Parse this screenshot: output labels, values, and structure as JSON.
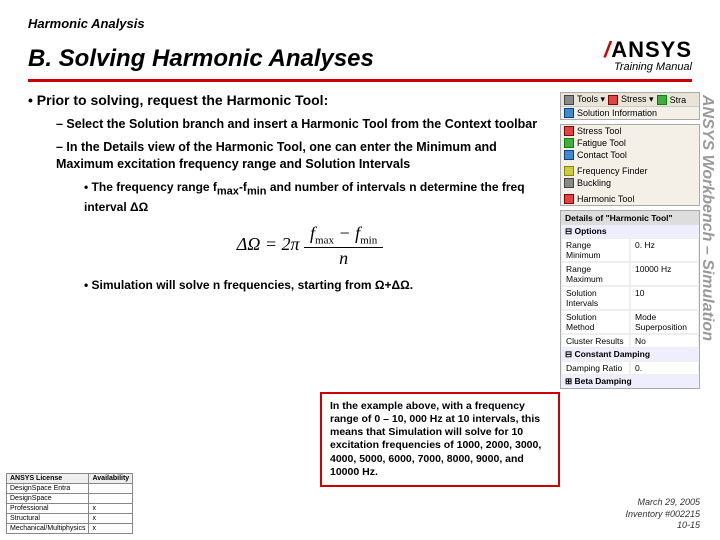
{
  "header": {
    "breadcrumb": "Harmonic Analysis",
    "title": "B.  Solving Harmonic Analyses",
    "logo_text": "ANSYS",
    "manual_label": "Training Manual"
  },
  "sidebar_text": "ANSYS Workbench – Simulation",
  "bullets": {
    "l1": "•  Prior to solving, request the Harmonic Tool:",
    "l2a": "–  Select the Solution branch and insert a Harmonic Tool from the Context toolbar",
    "l2b": "–  In the Details view of the Harmonic Tool, one can enter the Minimum and Maximum excitation frequency range and Solution Intervals",
    "l3a_pre": "•  The frequency range f",
    "l3a_mid": "-f",
    "l3a_post": " and number of intervals n determine the freq interval ΔΩ",
    "l3b": "•  Simulation will solve n frequencies, starting from Ω+ΔΩ."
  },
  "formula": {
    "lhs": "ΔΩ = 2π",
    "num_pre": "f",
    "num_mid": " − f",
    "den": "n"
  },
  "example_box": "In the example above, with a frequency range of 0 – 10, 000 Hz at 10 intervals, this means that Simulation will solve for 10 excitation frequencies of 1000, 2000, 3000, 4000, 5000, 6000, 7000, 8000, 9000, and 10000 Hz.",
  "toolbar": {
    "tools": "Tools ▾",
    "stress": "Stress ▾",
    "stra": "Stra",
    "sol_info": "Solution Information"
  },
  "tree": {
    "items": [
      "Stress Tool",
      "Fatigue Tool",
      "Contact Tool",
      "Frequency Finder",
      "Buckling",
      "Harmonic Tool"
    ]
  },
  "details": {
    "title": "Details of \"Harmonic Tool\"",
    "sec1": "Options",
    "rows1": [
      [
        "Range Minimum",
        "0. Hz"
      ],
      [
        "Range Maximum",
        "10000 Hz"
      ],
      [
        "Solution Intervals",
        "10"
      ],
      [
        "Solution Method",
        "Mode Superposition"
      ],
      [
        "Cluster Results",
        "No"
      ]
    ],
    "sec2": "Constant Damping",
    "rows2": [
      [
        "Damping Ratio",
        "0."
      ]
    ],
    "sec3": "Beta Damping"
  },
  "lic_table": {
    "headers": [
      "ANSYS License",
      "Availability"
    ],
    "rows": [
      [
        "DesignSpace Entra",
        ""
      ],
      [
        "DesignSpace",
        ""
      ],
      [
        "Professional",
        "x"
      ],
      [
        "Structural",
        "x"
      ],
      [
        "Mechanical/Multiphysics",
        "x"
      ]
    ]
  },
  "footer": {
    "date": "March 29, 2005",
    "inv": "Inventory #002215",
    "page": "10-15"
  }
}
